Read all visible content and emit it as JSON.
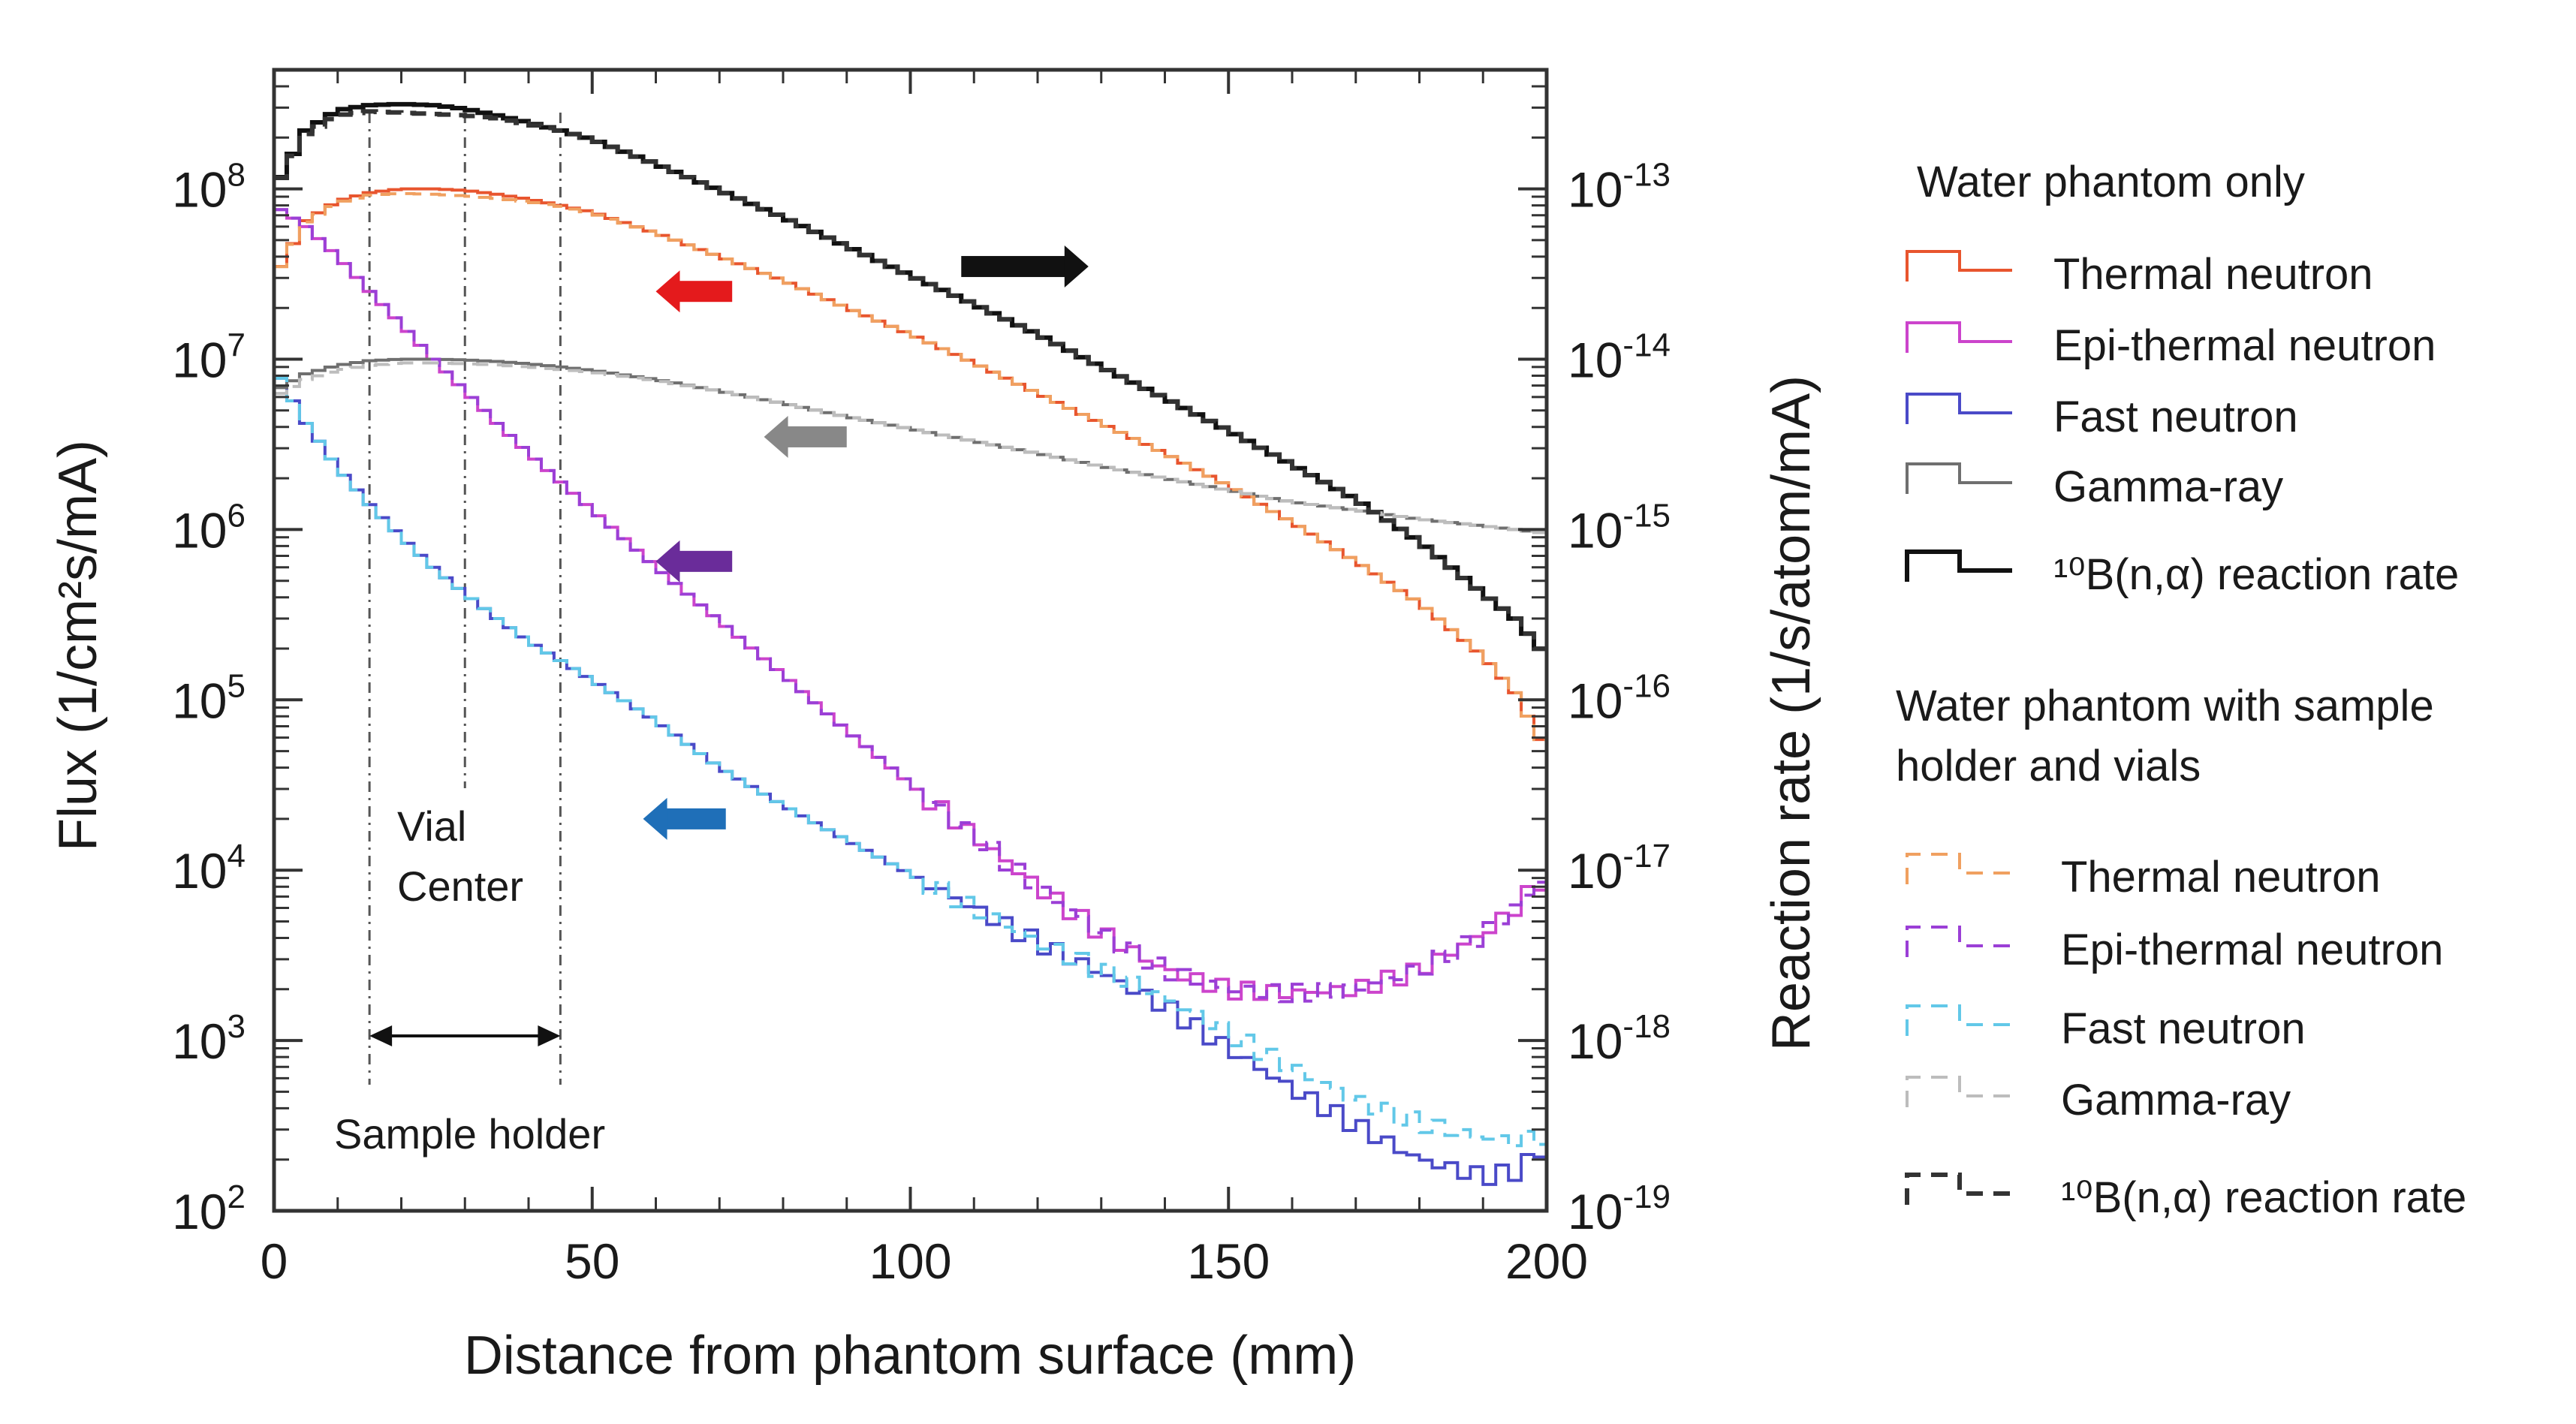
{
  "chart_data": {
    "type": "line",
    "title": "",
    "xlabel": "Distance from phantom surface (mm)",
    "ylabel_left": "Flux (1/cm²s/mA)",
    "ylabel_right": "Reaction rate (1/s/atom/mA)",
    "xlim": [
      0,
      200
    ],
    "ylim_left": [
      100,
      500000000
    ],
    "ylim_right": [
      1e-19,
      5e-13
    ],
    "yscale": "log",
    "grid": false,
    "x_ticks": [
      0,
      50,
      100,
      150,
      200
    ],
    "x_tick_labels": [
      "0",
      "50",
      "100",
      "150",
      "200"
    ],
    "left_ticks": [
      {
        "value": 100,
        "base": "10",
        "exp": "2"
      },
      {
        "value": 1000,
        "base": "10",
        "exp": "3"
      },
      {
        "value": 10000,
        "base": "10",
        "exp": "4"
      },
      {
        "value": 100000,
        "base": "10",
        "exp": "5"
      },
      {
        "value": 1000000,
        "base": "10",
        "exp": "6"
      },
      {
        "value": 10000000,
        "base": "10",
        "exp": "7"
      },
      {
        "value": 100000000,
        "base": "10",
        "exp": "8"
      }
    ],
    "right_ticks": [
      {
        "value": 1e-19,
        "base": "10",
        "exp": "-19"
      },
      {
        "value": 1e-18,
        "base": "10",
        "exp": "-18"
      },
      {
        "value": 1e-17,
        "base": "10",
        "exp": "-17"
      },
      {
        "value": 1e-16,
        "base": "10",
        "exp": "-16"
      },
      {
        "value": 1e-15,
        "base": "10",
        "exp": "-15"
      },
      {
        "value": 1e-14,
        "base": "10",
        "exp": "-14"
      },
      {
        "value": 1e-13,
        "base": "10",
        "exp": "-13"
      }
    ],
    "x": [
      0,
      5,
      10,
      15,
      20,
      25,
      30,
      35,
      40,
      45,
      50,
      60,
      70,
      80,
      90,
      100,
      110,
      120,
      130,
      140,
      150,
      160,
      170,
      180,
      190,
      195,
      200
    ],
    "series": [
      {
        "name": "Thermal neutron",
        "group": "Water phantom only",
        "style": "solid",
        "color": "#e8552e",
        "axis": "left",
        "values": [
          30000000,
          65000000,
          85000000,
          95000000,
          100000000,
          100000000,
          98000000,
          93000000,
          87000000,
          80000000,
          73000000,
          55000000,
          40000000,
          29000000,
          20000000,
          14000000,
          9500000,
          6300000,
          4200000,
          2800000,
          1800000,
          1100000,
          650000,
          370000,
          180000,
          110000,
          50000
        ]
      },
      {
        "name": "Epi-thermal neutron",
        "group": "Water phantom only",
        "style": "solid",
        "color": "#cc44cc",
        "axis": "left",
        "values": [
          80000000,
          60000000,
          40000000,
          25000000,
          16000000,
          10000000,
          6500000,
          4200000,
          2800000,
          1900000,
          1300000,
          600000,
          290000,
          140000,
          66000,
          32000,
          16000,
          8000,
          4300,
          2600,
          2000,
          1900,
          2000,
          2600,
          4200,
          6000,
          9500
        ]
      },
      {
        "name": "Fast neutron",
        "group": "Water phantom only",
        "style": "solid",
        "color": "#4a4ac8",
        "axis": "left",
        "values": [
          9000000,
          4200000,
          2300000,
          1400000,
          900000,
          600000,
          420000,
          300000,
          220000,
          170000,
          130000,
          75000,
          40000,
          24000,
          15000,
          9500,
          6000,
          3800,
          2500,
          1600,
          900,
          520,
          320,
          200,
          160,
          170,
          240
        ]
      },
      {
        "name": "Gamma-ray",
        "group": "Water phantom only",
        "style": "solid",
        "color": "#6f6f6f",
        "axis": "left",
        "values": [
          6500000,
          8200000,
          9200000,
          9800000,
          10000000,
          10000000,
          9900000,
          9700000,
          9400000,
          9000000,
          8600000,
          7600000,
          6500000,
          5500000,
          4600000,
          3900000,
          3300000,
          2800000,
          2350000,
          2000000,
          1700000,
          1450000,
          1300000,
          1150000,
          1050000,
          1000000,
          950000
        ]
      },
      {
        "name": "¹⁰B(n,α) reaction rate",
        "group": "Water phantom only",
        "style": "solid",
        "color": "#111111",
        "axis": "right",
        "values": [
          1e-13,
          2.2e-13,
          2.9e-13,
          3.1e-13,
          3.15e-13,
          3.1e-13,
          2.95e-13,
          2.7e-13,
          2.45e-13,
          2.2e-13,
          1.95e-13,
          1.4e-13,
          9.8e-14,
          6.8e-14,
          4.6e-14,
          3.1e-14,
          2.1e-14,
          1.4e-14,
          9e-15,
          5.9e-15,
          3.8e-15,
          2.4e-15,
          1.5e-15,
          8.5e-16,
          4.2e-16,
          3e-16,
          1.8e-16
        ]
      },
      {
        "name": "Thermal neutron",
        "group": "Water phantom with sample holder and vials",
        "style": "dashed",
        "color": "#f0a060",
        "axis": "left",
        "values": [
          30000000,
          64000000,
          83000000,
          92000000,
          94000000,
          93000000,
          91000000,
          88000000,
          84000000,
          79000000,
          72000000,
          55000000,
          40000000,
          29000000,
          20000000,
          14000000,
          9500000,
          6300000,
          4200000,
          2800000,
          1800000,
          1100000,
          650000,
          370000,
          180000,
          110000,
          50000
        ]
      },
      {
        "name": "Epi-thermal neutron",
        "group": "Water phantom with sample holder and vials",
        "style": "dashed",
        "color": "#9b3fd6",
        "axis": "left",
        "values": [
          80000000,
          60000000,
          40000000,
          25000000,
          16000000,
          10000000,
          6500000,
          4200000,
          2800000,
          1900000,
          1300000,
          600000,
          290000,
          140000,
          66000,
          32000,
          16000,
          8000,
          4300,
          2600,
          2000,
          1900,
          2000,
          2600,
          4200,
          6000,
          9500
        ]
      },
      {
        "name": "Fast neutron",
        "group": "Water phantom with sample holder and vials",
        "style": "dashed",
        "color": "#62c8e8",
        "axis": "left",
        "values": [
          9000000,
          4200000,
          2300000,
          1400000,
          900000,
          600000,
          420000,
          300000,
          220000,
          170000,
          130000,
          75000,
          40000,
          24000,
          15000,
          9500,
          6000,
          3800,
          2600,
          1800,
          1100,
          700,
          450,
          330,
          270,
          260,
          280
        ]
      },
      {
        "name": "Gamma-ray",
        "group": "Water phantom with sample holder and vials",
        "style": "dashed",
        "color": "#bdbdbd",
        "axis": "left",
        "values": [
          6000000,
          7600000,
          8600000,
          9200000,
          9500000,
          9500000,
          9400000,
          9250000,
          9000000,
          8700000,
          8400000,
          7500000,
          6500000,
          5500000,
          4600000,
          3900000,
          3300000,
          2800000,
          2350000,
          2000000,
          1700000,
          1450000,
          1300000,
          1150000,
          1050000,
          1000000,
          950000
        ]
      },
      {
        "name": "¹⁰B(n,α) reaction rate",
        "group": "Water phantom with sample holder and vials",
        "style": "dashed",
        "color": "#333333",
        "axis": "right",
        "values": [
          1e-13,
          2.1e-13,
          2.7e-13,
          2.85e-13,
          2.8e-13,
          2.75e-13,
          2.7e-13,
          2.6e-13,
          2.4e-13,
          2.2e-13,
          1.95e-13,
          1.4e-13,
          9.8e-14,
          6.8e-14,
          4.6e-14,
          3.1e-14,
          2.1e-14,
          1.4e-14,
          9e-15,
          5.9e-15,
          3.8e-15,
          2.4e-15,
          1.5e-15,
          8.5e-16,
          4.2e-16,
          3e-16,
          1.8e-16
        ]
      }
    ],
    "vertical_lines": [
      15,
      30,
      45
    ],
    "annotations": {
      "vial_center": [
        "Vial",
        "Center"
      ],
      "sample_holder": "Sample holder",
      "sample_holder_range": [
        15,
        45
      ]
    },
    "axis_arrows": [
      {
        "color": "#111111",
        "direction": "right",
        "x": [
          108,
          128
        ],
        "y_value_left": 35000000
      },
      {
        "color": "#e41a1c",
        "direction": "left",
        "x": [
          60,
          72
        ],
        "y_value_left": 25000000
      },
      {
        "color": "#888888",
        "direction": "left",
        "x": [
          77,
          90
        ],
        "y_value_left": 3500000
      },
      {
        "color": "#6a2c9a",
        "direction": "left",
        "x": [
          60,
          72
        ],
        "y_value_left": 650000
      },
      {
        "color": "#1f6fb8",
        "direction": "left",
        "x": [
          58,
          71
        ],
        "y_value_left": 20000
      }
    ],
    "legend": {
      "placement": "right",
      "group1_title": "Water phantom only",
      "group1_items": [
        "Thermal neutron",
        "Epi-thermal neutron",
        "Fast neutron",
        "Gamma-ray",
        "¹⁰B(n,α) reaction rate"
      ],
      "group2_title_line1": "Water phantom with sample",
      "group2_title_line2": "holder and vials",
      "group2_items": [
        "Thermal neutron",
        "Epi-thermal neutron",
        "Fast neutron",
        "Gamma-ray",
        "¹⁰B(n,α) reaction rate"
      ]
    }
  }
}
